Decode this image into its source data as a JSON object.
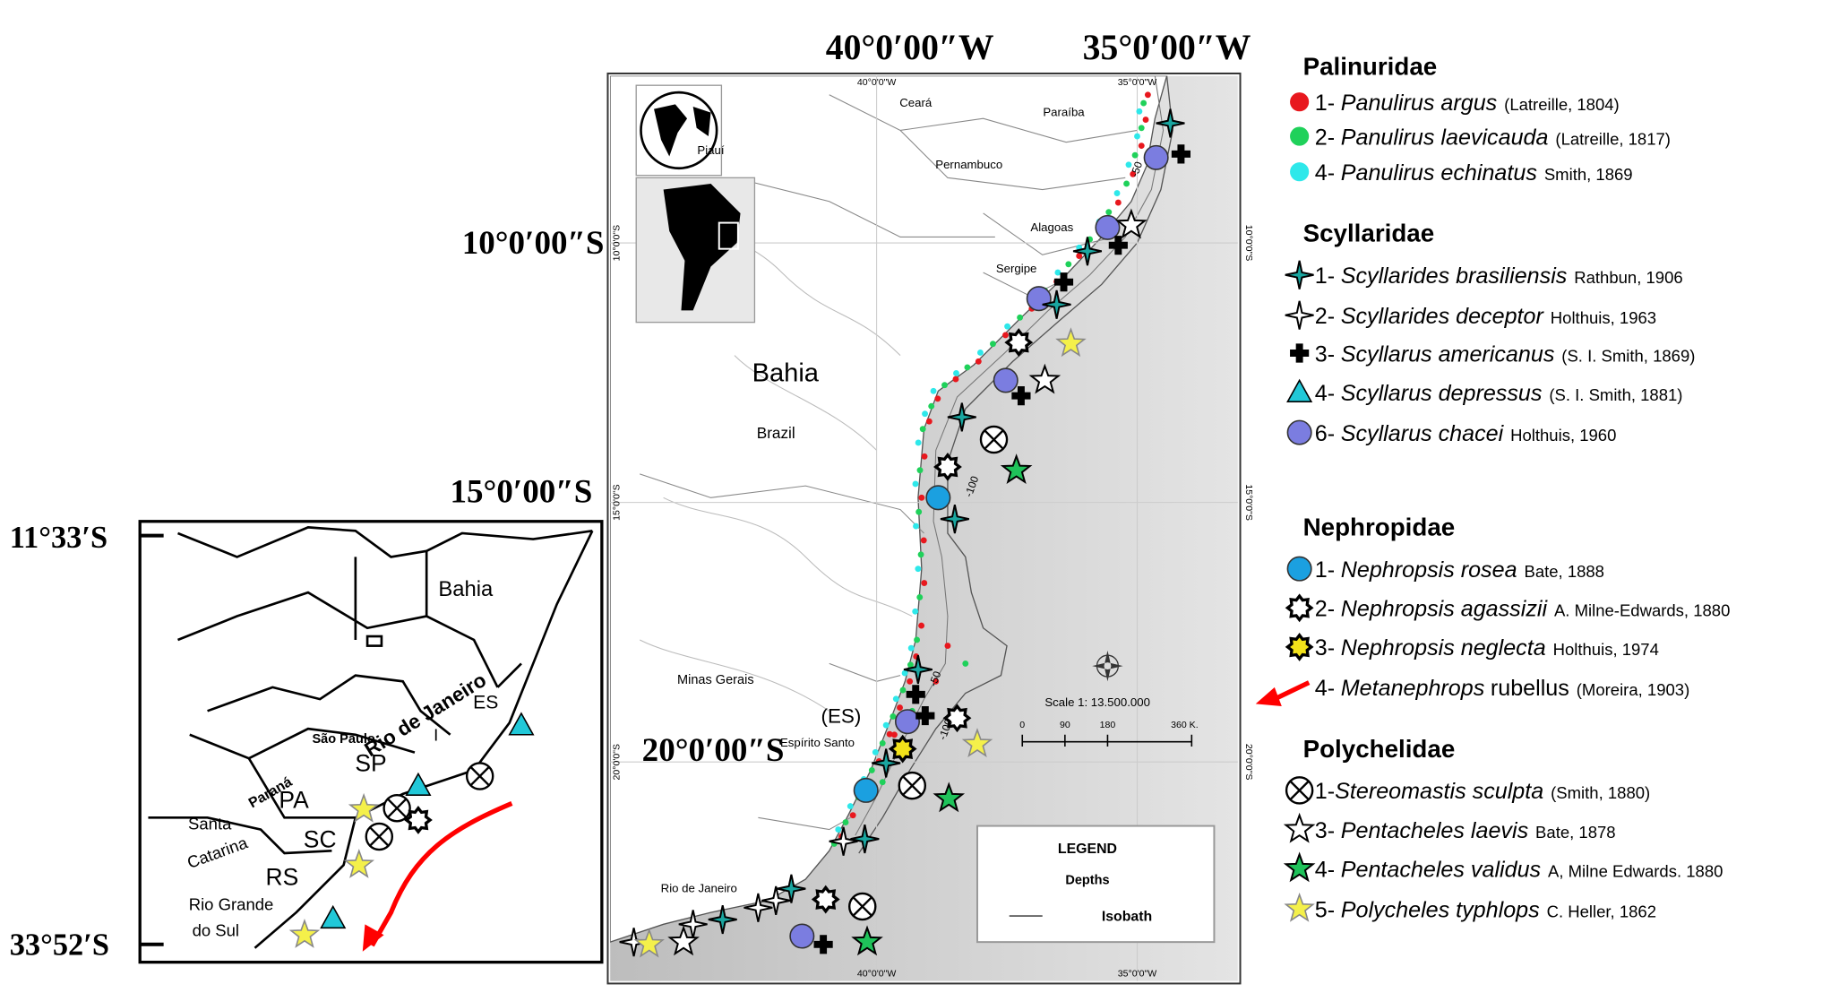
{
  "main_map": {
    "top_labels": [
      "40°0′00″W",
      "35°0′00″W"
    ],
    "side_labels": [
      "10°0′00″S",
      "15°0′00″S",
      "20°0′00″S"
    ],
    "grid_top": [
      "40°0'0\"W",
      "35°0'0\"W"
    ],
    "grid_bottom": [
      "40°0'0\"W",
      "35°0'0\"W"
    ],
    "grid_left": [
      "10°0'0\"S",
      "15°0'0\"S",
      "20°0'0\"S"
    ],
    "grid_right": [
      "10°0'0\"S",
      "15°0'0\"S",
      "20°0'0\"S"
    ],
    "places": [
      "Ceará",
      "Paraíba",
      "Pernambuco",
      "Alagoas",
      "Sergipe",
      "Bahia",
      "Brazil",
      "Minas Gerais",
      "(ES)",
      "Espírito Santo",
      "Rio de Janeiro",
      "Piauí"
    ],
    "isobaths": [
      "-50",
      "-100",
      "-50",
      "-100"
    ],
    "scale": {
      "title": "Scale 1: 13.500.000",
      "ticks": [
        "0",
        "90",
        "180",
        "360 K."
      ]
    },
    "legend": {
      "title": "LEGEND",
      "subtitle": "Depths",
      "line": "Isobath"
    }
  },
  "inset_map": {
    "lat_labels": [
      "11°33′S",
      "33°52′S"
    ],
    "places": [
      "Bahia",
      "Rio de Janeiro",
      "ES",
      "I",
      "São Paulo",
      "SP",
      "Paraná",
      "PA",
      "Santa",
      "Catarina",
      "SC",
      "RS",
      "Rio Grande",
      "do Sul"
    ]
  },
  "species_legend": {
    "groups": [
      {
        "family": "Palinuridae",
        "entries": [
          {
            "number": "1-",
            "name": "Panulirus argus",
            "authority": "(Latreille, 1804)"
          },
          {
            "number": "2-",
            "name": "Panulirus laevicauda",
            "authority": "(Latreille, 1817)"
          },
          {
            "number": "4-",
            "name": "Panulirus echinatus",
            "authority": "Smith, 1869"
          }
        ]
      },
      {
        "family": "Scyllaridae",
        "entries": [
          {
            "number": "1-",
            "name": "Scyllarides brasiliensis",
            "authority": "Rathbun, 1906"
          },
          {
            "number": "2-",
            "name": "Scyllarides deceptor",
            "authority": "Holthuis, 1963"
          },
          {
            "number": "3-",
            "name": "Scyllarus americanus",
            "authority": "(S. I. Smith, 1869)"
          },
          {
            "number": "4-",
            "name": "Scyllarus depressus",
            "authority": "(S. I. Smith, 1881)"
          },
          {
            "number": "6-",
            "name": "Scyllarus chacei",
            "authority": "Holthuis, 1960"
          }
        ]
      },
      {
        "family": "Nephropidae",
        "entries": [
          {
            "number": "1-",
            "name": "Nephropsis rosea",
            "authority": "Bate, 1888"
          },
          {
            "number": "2-",
            "name": "Nephropsis agassizii",
            "authority": "A. Milne-Edwards, 1880"
          },
          {
            "number": "3-",
            "name": "Nephropsis neglecta",
            "authority": "Holthuis, 1974"
          },
          {
            "number": "4-",
            "name": "Metanephrops",
            "plain": "rubellus",
            "authority": "(Moreira, 1903)"
          }
        ]
      },
      {
        "family": "Polychelidae",
        "entries": [
          {
            "number": "1-",
            "name": "Stereomastis sculpta",
            "authority": "(Smith, 1880)"
          },
          {
            "number": "3-",
            "name": "Pentacheles laevis",
            "authority": "Bate, 1878"
          },
          {
            "number": "4-",
            "name": "Pentacheles validus",
            "authority": "A, Milne Edwards. 1880"
          },
          {
            "number": "5-",
            "name": "Polycheles typhlops",
            "authority": "C. Heller, 1862"
          }
        ]
      }
    ]
  }
}
